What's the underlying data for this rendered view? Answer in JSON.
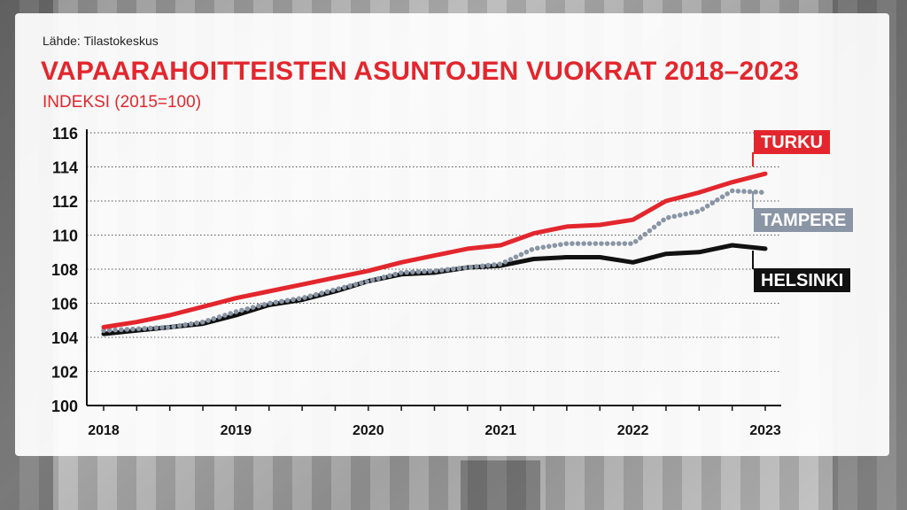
{
  "source_label": "Lähde: Tilastokeskus",
  "colors": {
    "Turku": "#e3262d",
    "Tampere": "#8a95a5",
    "Helsinki": "#111111",
    "grid": "#555555"
  },
  "chart_data": {
    "type": "line",
    "title": "VAPAARAHOITTEISTEN ASUNTOJEN VUOKRAT 2018–2023",
    "subtitle": "INDEKSI (2015=100)",
    "x_ticks": [
      "2018",
      "2019",
      "2020",
      "2021",
      "2022",
      "2023"
    ],
    "xlim": [
      2018,
      2023
    ],
    "ylim": [
      100,
      116
    ],
    "y_ticks": [
      100,
      102,
      104,
      106,
      108,
      110,
      112,
      114,
      116
    ],
    "grid": true,
    "x": [
      2018.0,
      2018.25,
      2018.5,
      2018.75,
      2019.0,
      2019.25,
      2019.5,
      2019.75,
      2020.0,
      2020.25,
      2020.5,
      2020.75,
      2021.0,
      2021.25,
      2021.5,
      2021.75,
      2022.0,
      2022.25,
      2022.5,
      2022.75,
      2023.0
    ],
    "series": [
      {
        "name": "Turku",
        "style": "solid",
        "values": [
          104.6,
          104.9,
          105.3,
          105.8,
          106.3,
          106.7,
          107.1,
          107.5,
          107.9,
          108.4,
          108.8,
          109.2,
          109.4,
          110.1,
          110.5,
          110.6,
          110.9,
          112.0,
          112.5,
          113.1,
          113.6
        ]
      },
      {
        "name": "Tampere",
        "style": "dotted",
        "values": [
          104.4,
          104.5,
          104.6,
          104.9,
          105.5,
          106.0,
          106.3,
          106.8,
          107.3,
          107.8,
          107.9,
          108.1,
          108.3,
          109.2,
          109.5,
          109.5,
          109.5,
          111.0,
          111.4,
          112.6,
          112.5
        ]
      },
      {
        "name": "Helsinki",
        "style": "solid",
        "values": [
          104.2,
          104.4,
          104.6,
          104.8,
          105.3,
          105.9,
          106.2,
          106.7,
          107.3,
          107.7,
          107.8,
          108.1,
          108.2,
          108.6,
          108.7,
          108.7,
          108.4,
          108.9,
          109.0,
          109.4,
          109.2
        ]
      }
    ]
  }
}
